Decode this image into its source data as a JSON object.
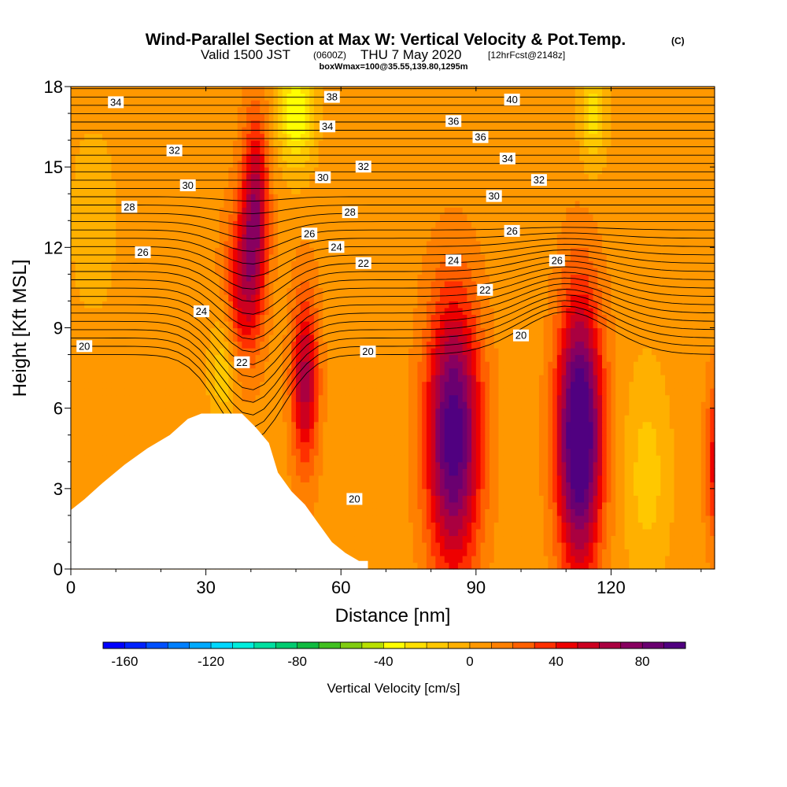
{
  "titles": {
    "main": "Wind-Parallel Section at Max W: Vertical Velocity & Pot.Temp.",
    "copyright": "(C)",
    "valid_prefix": "Valid 1500 JST",
    "valid_utc": "(0600Z)",
    "valid_suffix": "THU 7 May 2020",
    "forecast": "[12hrFcst@2148z]",
    "box": "boxWmax=100@35.55,139.80,1295m"
  },
  "chart_data": {
    "type": "heatmap",
    "xlabel": "Distance [nm]",
    "ylabel": "Height [Kft MSL]",
    "xlim": [
      0,
      143
    ],
    "ylim": [
      0,
      18
    ],
    "x_ticks": [
      0,
      30,
      60,
      90,
      120
    ],
    "y_ticks": [
      0,
      3,
      6,
      9,
      12,
      15,
      18
    ],
    "colorbar": {
      "label": "Vertical Velocity [cm/s]",
      "min": -170,
      "max": 100,
      "step": 10,
      "tick_values": [
        -160,
        -120,
        -80,
        -40,
        0,
        40,
        80
      ],
      "tick_labels": [
        "-160",
        "-120",
        "-80",
        "-40",
        "0",
        "40",
        "80"
      ],
      "colors": [
        "#0000ff",
        "#0022ff",
        "#0050ff",
        "#0080ff",
        "#00aaff",
        "#00d8ff",
        "#00eedd",
        "#00e0a0",
        "#00cc70",
        "#10bb40",
        "#40c020",
        "#80cc10",
        "#b8e000",
        "#ffff00",
        "#ffe000",
        "#ffc800",
        "#ffb000",
        "#ff9800",
        "#ff8000",
        "#ff6000",
        "#ff3000",
        "#ee0000",
        "#cc0020",
        "#aa0040",
        "#880060",
        "#6a0070",
        "#500080"
      ]
    },
    "terrain": [
      [
        0,
        2.2
      ],
      [
        3,
        2.6
      ],
      [
        7,
        3.2
      ],
      [
        12,
        3.9
      ],
      [
        17,
        4.5
      ],
      [
        22,
        5.0
      ],
      [
        26,
        5.6
      ],
      [
        29,
        5.8
      ],
      [
        38,
        5.8
      ],
      [
        41,
        5.3
      ],
      [
        44,
        4.7
      ],
      [
        46,
        3.6
      ],
      [
        49,
        2.9
      ],
      [
        52,
        2.4
      ],
      [
        55,
        1.7
      ],
      [
        58,
        1.0
      ],
      [
        61,
        0.6
      ],
      [
        64,
        0.3
      ],
      [
        66,
        0.3
      ]
    ],
    "w_centers": [
      {
        "x": 41,
        "y": 13.5,
        "w": 60,
        "rx": 3,
        "ry": 3.5
      },
      {
        "x": 38,
        "y": 10.5,
        "w": 45,
        "rx": 4,
        "ry": 3
      },
      {
        "x": 34,
        "y": 7.5,
        "w": -25,
        "rx": 3,
        "ry": 2.2
      },
      {
        "x": 50,
        "y": 17,
        "w": -45,
        "rx": 4,
        "ry": 2
      },
      {
        "x": 52,
        "y": 7,
        "w": 60,
        "rx": 3,
        "ry": 3.3
      },
      {
        "x": 85,
        "y": 5,
        "w": 95,
        "rx": 6,
        "ry": 5
      },
      {
        "x": 113,
        "y": 5,
        "w": 110,
        "rx": 5,
        "ry": 5
      },
      {
        "x": 128,
        "y": 3.5,
        "w": -20,
        "rx": 5,
        "ry": 4
      },
      {
        "x": 116,
        "y": 17,
        "w": -30,
        "rx": 3,
        "ry": 2
      },
      {
        "x": 5,
        "y": 13,
        "w": -10,
        "rx": 6,
        "ry": 4
      },
      {
        "x": 143,
        "y": 4,
        "w": 40,
        "rx": 2,
        "ry": 3
      }
    ],
    "w_background": 5,
    "theta_levels": [
      20,
      22,
      24,
      26,
      28,
      30,
      32,
      34,
      36,
      38,
      40
    ],
    "contour_labels": [
      {
        "text": "34",
        "x": 10,
        "y": 17.4
      },
      {
        "text": "32",
        "x": 23,
        "y": 15.6
      },
      {
        "text": "30",
        "x": 26,
        "y": 14.3
      },
      {
        "text": "28",
        "x": 13,
        "y": 13.5
      },
      {
        "text": "26",
        "x": 16,
        "y": 11.8
      },
      {
        "text": "24",
        "x": 29,
        "y": 9.6
      },
      {
        "text": "22",
        "x": 38,
        "y": 7.7
      },
      {
        "text": "20",
        "x": 3,
        "y": 8.3
      },
      {
        "text": "38",
        "x": 58,
        "y": 17.6
      },
      {
        "text": "34",
        "x": 57,
        "y": 16.5
      },
      {
        "text": "32",
        "x": 65,
        "y": 15.0
      },
      {
        "text": "30",
        "x": 56,
        "y": 14.6
      },
      {
        "text": "28",
        "x": 62,
        "y": 13.3
      },
      {
        "text": "26",
        "x": 53,
        "y": 12.5
      },
      {
        "text": "24",
        "x": 59,
        "y": 12.0
      },
      {
        "text": "22",
        "x": 65,
        "y": 11.4
      },
      {
        "text": "36",
        "x": 85,
        "y": 16.7
      },
      {
        "text": "36",
        "x": 91,
        "y": 16.1
      },
      {
        "text": "40",
        "x": 98,
        "y": 17.5
      },
      {
        "text": "34",
        "x": 97,
        "y": 15.3
      },
      {
        "text": "32",
        "x": 104,
        "y": 14.5
      },
      {
        "text": "30",
        "x": 94,
        "y": 13.9
      },
      {
        "text": "26",
        "x": 98,
        "y": 12.6
      },
      {
        "text": "24",
        "x": 85,
        "y": 11.5
      },
      {
        "text": "26",
        "x": 108,
        "y": 11.5
      },
      {
        "text": "22",
        "x": 92,
        "y": 10.4
      },
      {
        "text": "20",
        "x": 100,
        "y": 8.7
      },
      {
        "text": "20",
        "x": 66,
        "y": 8.1
      },
      {
        "text": "20",
        "x": 63,
        "y": 2.6
      }
    ]
  }
}
